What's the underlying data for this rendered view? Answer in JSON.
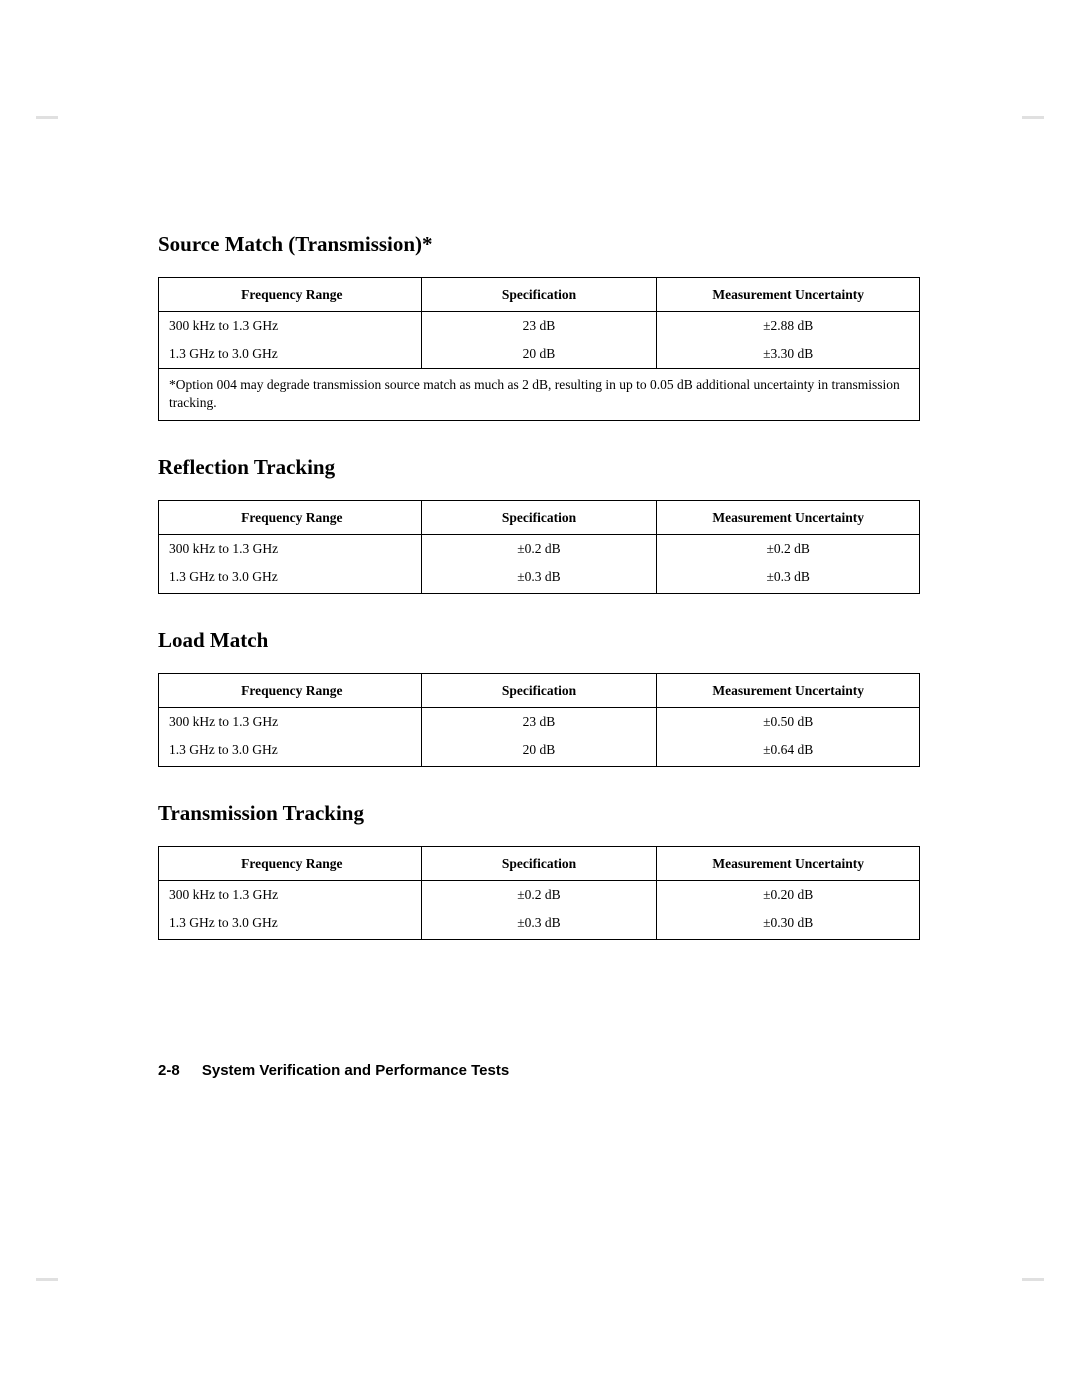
{
  "sections": [
    {
      "title": "Source Match (Transmission)*",
      "headers": [
        "Frequency Range",
        "Specification",
        "Measurement Uncertainty"
      ],
      "rows": [
        [
          "300 kHz to 1.3 GHz",
          "23 dB",
          "±2.88 dB"
        ],
        [
          "1.3 GHz to 3.0 GHz",
          "20 dB",
          "±3.30 dB"
        ]
      ],
      "footnote": "*Option 004 may degrade transmission source match as much as 2 dB, resulting in up to 0.05 dB additional uncertainty in transmission tracking."
    },
    {
      "title": "Reflection Tracking",
      "headers": [
        "Frequency Range",
        "Specification",
        "Measurement Uncertainty"
      ],
      "rows": [
        [
          "300 kHz to 1.3 GHz",
          "±0.2 dB",
          "±0.2 dB"
        ],
        [
          "1.3 GHz to 3.0 GHz",
          "±0.3 dB",
          "±0.3 dB"
        ]
      ]
    },
    {
      "title": "Load Match",
      "headers": [
        "Frequency Range",
        "Specification",
        "Measurement Uncertainty"
      ],
      "rows": [
        [
          "300 kHz to 1.3 GHz",
          "23 dB",
          "±0.50 dB"
        ],
        [
          "1.3 GHz to 3.0 GHz",
          "20 dB",
          "±0.64 dB"
        ]
      ]
    },
    {
      "title": "Transmission Tracking",
      "headers": [
        "Frequency Range",
        "Specification",
        "Measurement Uncertainty"
      ],
      "rows": [
        [
          "300 kHz to 1.3 GHz",
          "±0.2 dB",
          "±0.20 dB"
        ],
        [
          "1.3 GHz to 3.0 GHz",
          "±0.3 dB",
          "±0.30 dB"
        ]
      ]
    }
  ],
  "footer": {
    "page_number": "2-8",
    "title": "System Verification and Performance Tests"
  }
}
